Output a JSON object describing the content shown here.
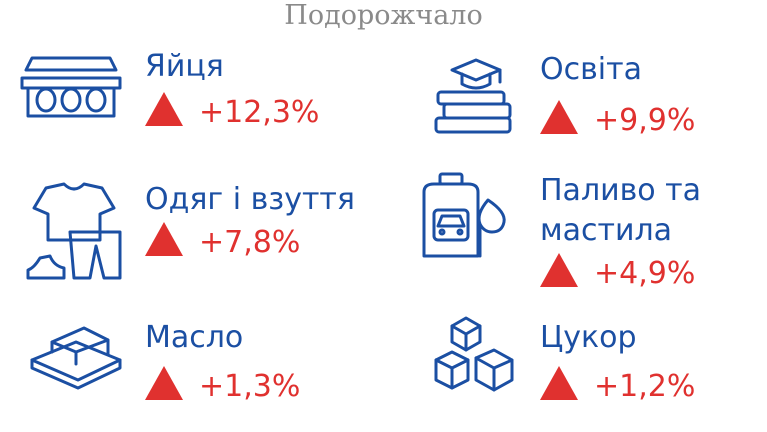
{
  "title": "Подорожчало",
  "items": [
    {
      "label": "Яйця",
      "change": "+12,3%"
    },
    {
      "label": "Освіта",
      "change": "+9,9%"
    },
    {
      "label": "Одяг і взуття",
      "change": "+7,8%"
    },
    {
      "label": "Паливо та мастила",
      "change": "+4,9%"
    },
    {
      "label": "Масло",
      "change": "+1,3%"
    },
    {
      "label": "Цукор",
      "change": "+1,2%"
    }
  ]
}
